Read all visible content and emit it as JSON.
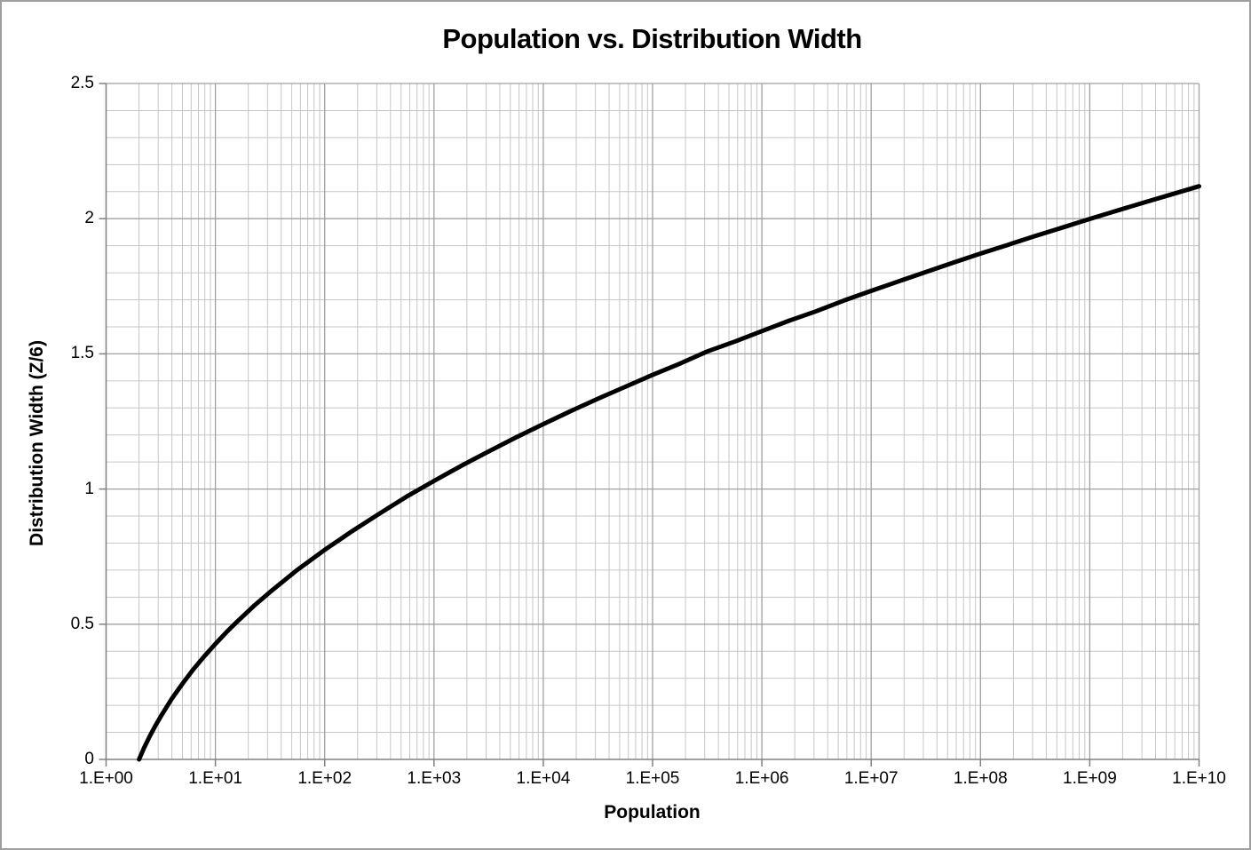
{
  "chart_data": {
    "type": "line",
    "title": "Population vs. Distribution Width",
    "xlabel": "Population",
    "ylabel": "Distribution Width (Z/6)",
    "x_scale": "log10",
    "x_range_exponents": [
      0,
      10
    ],
    "ylim": [
      0,
      2.5
    ],
    "y_major_step": 0.5,
    "y_minor_step": 0.1,
    "grid": "major and minor, both axes",
    "legend": "none",
    "x_tick_labels": [
      "1.E+00",
      "1.E+01",
      "1.E+02",
      "1.E+03",
      "1.E+04",
      "1.E+05",
      "1.E+06",
      "1.E+07",
      "1.E+08",
      "1.E+09",
      "1.E+10"
    ],
    "y_tick_labels": [
      "0",
      "0.5",
      "1",
      "1.5",
      "2",
      "2.5"
    ],
    "colors": {
      "curve": "#000000",
      "grid_minor": "#c6c6c6",
      "grid_major": "#a0a0a0",
      "axis": "#808080",
      "text": "#000000",
      "background": "#ffffff",
      "frame_border": "#9e9e9e"
    },
    "series": [
      {
        "name": "Distribution Width (Z/6)",
        "color": "#000000",
        "stroke_width": 5,
        "points_log10x_y": [
          [
            0.301,
            0.0
          ],
          [
            0.35,
            0.045
          ],
          [
            0.4,
            0.086
          ],
          [
            0.45,
            0.124
          ],
          [
            0.5,
            0.159
          ],
          [
            0.6,
            0.224
          ],
          [
            0.7,
            0.281
          ],
          [
            0.8,
            0.334
          ],
          [
            0.9,
            0.382
          ],
          [
            1.0,
            0.427
          ],
          [
            1.1,
            0.47
          ],
          [
            1.2,
            0.51
          ],
          [
            1.35,
            0.567
          ],
          [
            1.5,
            0.619
          ],
          [
            1.75,
            0.701
          ],
          [
            2.0,
            0.775
          ],
          [
            2.25,
            0.844
          ],
          [
            2.5,
            0.909
          ],
          [
            2.75,
            0.972
          ],
          [
            3.0,
            1.03
          ],
          [
            3.25,
            1.086
          ],
          [
            3.5,
            1.139
          ],
          [
            3.75,
            1.191
          ],
          [
            4.0,
            1.24
          ],
          [
            4.25,
            1.288
          ],
          [
            4.5,
            1.334
          ],
          [
            4.75,
            1.378
          ],
          [
            5.0,
            1.422
          ],
          [
            5.25,
            1.464
          ],
          [
            5.5,
            1.509
          ],
          [
            5.75,
            1.545
          ],
          [
            6.0,
            1.584
          ],
          [
            6.25,
            1.623
          ],
          [
            6.5,
            1.658
          ],
          [
            6.75,
            1.697
          ],
          [
            7.0,
            1.733
          ],
          [
            7.25,
            1.768
          ],
          [
            7.5,
            1.803
          ],
          [
            7.75,
            1.837
          ],
          [
            8.0,
            1.871
          ],
          [
            8.25,
            1.903
          ],
          [
            8.5,
            1.936
          ],
          [
            8.75,
            1.967
          ],
          [
            9.0,
            1.999
          ],
          [
            9.25,
            2.03
          ],
          [
            9.5,
            2.06
          ],
          [
            9.75,
            2.09
          ],
          [
            10.0,
            2.12
          ]
        ],
        "anchor_values_at_decades": {
          "1.E+01": 0.43,
          "1.E+02": 0.78,
          "1.E+03": 1.03,
          "1.E+04": 1.24,
          "1.E+05": 1.42,
          "1.E+06": 1.58,
          "1.E+07": 1.73,
          "1.E+08": 1.87,
          "1.E+09": 2.0,
          "1.E+10": 2.12
        }
      }
    ]
  }
}
